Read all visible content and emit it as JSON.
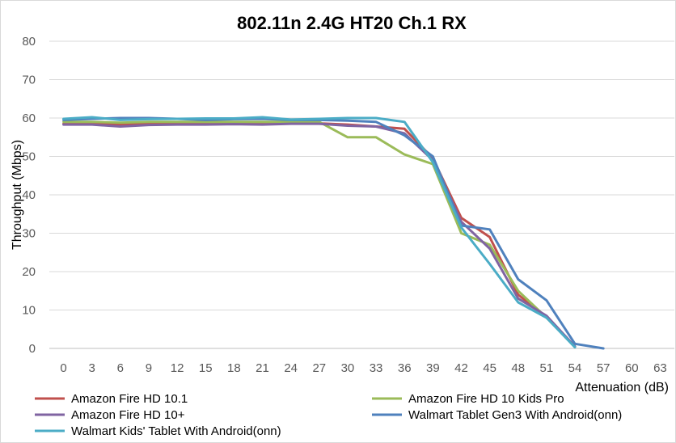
{
  "chart_data": {
    "type": "line",
    "title": "802.11n 2.4G HT20 Ch.1 RX",
    "xlabel": "Attenuation (dB)",
    "ylabel": "Throughput (Mbps)",
    "x": [
      0,
      3,
      6,
      9,
      12,
      15,
      18,
      21,
      24,
      27,
      30,
      33,
      36,
      39,
      42,
      45,
      48,
      51,
      54,
      57,
      60,
      63
    ],
    "ylim": [
      0,
      80
    ],
    "yticks": [
      0,
      10,
      20,
      30,
      40,
      50,
      60,
      70,
      80
    ],
    "grid": "horizontal",
    "legend_position": "bottom",
    "series": [
      {
        "name": "Amazon Fire HD 10.1",
        "color": "#c0504d",
        "values": [
          58.5,
          58.5,
          58.3,
          58.6,
          58.7,
          58.5,
          58.7,
          58.5,
          58.7,
          58.6,
          58.3,
          57.8,
          57.2,
          49.5,
          34.0,
          29.0,
          14.0,
          8.0,
          0.5,
          null,
          null,
          null
        ]
      },
      {
        "name": "Amazon Fire HD 10 Kids Pro",
        "color": "#9bbb59",
        "values": [
          59.0,
          59.0,
          58.8,
          59.0,
          59.0,
          59.0,
          59.0,
          59.0,
          59.0,
          59.0,
          55.0,
          55.0,
          50.5,
          48.0,
          30.0,
          27.0,
          15.0,
          8.0,
          0.5,
          null,
          null,
          null
        ]
      },
      {
        "name": "Amazon Fire HD 10+",
        "color": "#8064a2",
        "values": [
          58.3,
          58.3,
          57.8,
          58.2,
          58.3,
          58.3,
          58.4,
          58.3,
          58.5,
          58.5,
          58.0,
          57.8,
          56.0,
          49.0,
          33.0,
          26.0,
          13.0,
          8.5,
          0.5,
          null,
          null,
          null
        ]
      },
      {
        "name": "Walmart Tablet Gen3 With Android(onn)",
        "color": "#4f81bd",
        "values": [
          59.5,
          59.8,
          60.0,
          60.0,
          59.8,
          59.5,
          59.7,
          59.8,
          59.5,
          59.5,
          59.3,
          59.0,
          55.5,
          50.0,
          32.0,
          31.0,
          18.0,
          12.5,
          1.2,
          0.0,
          null,
          null
        ]
      },
      {
        "name": "Walmart Kids' Tablet With Android(onn)",
        "color": "#4bacc6",
        "values": [
          59.8,
          60.2,
          59.5,
          59.7,
          59.8,
          59.9,
          59.9,
          60.2,
          59.6,
          59.8,
          60.0,
          60.0,
          59.0,
          48.5,
          31.5,
          22.0,
          12.0,
          8.0,
          0.3,
          null,
          null,
          null
        ]
      }
    ]
  }
}
